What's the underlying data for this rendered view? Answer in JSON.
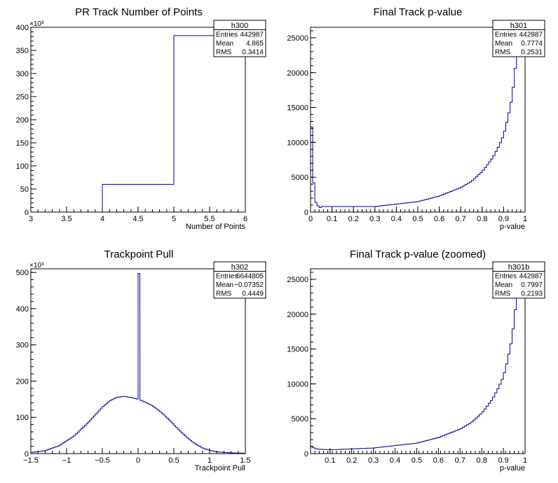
{
  "colors": {
    "hist_line": "#000099",
    "axis": "#000000",
    "background": "#ffffff"
  },
  "chart_data": [
    {
      "type": "histogram",
      "title": "PR Track Number of Points",
      "xlabel": "Number of Points",
      "ylabel": "",
      "xlim": [
        3,
        6
      ],
      "ylim": [
        0,
        400
      ],
      "y_exponent_label": "×10³",
      "xticks": [
        3,
        3.5,
        4,
        4.5,
        5,
        5.5,
        6
      ],
      "xtick_labels": [
        "3",
        "3.5",
        "4",
        "4.5",
        "5",
        "5.5",
        "6"
      ],
      "yticks": [
        0,
        50,
        100,
        150,
        200,
        250,
        300,
        350,
        400
      ],
      "ytick_labels": [
        "0",
        "50",
        "100",
        "150",
        "200",
        "250",
        "300",
        "350",
        "400"
      ],
      "bins": {
        "edges": [
          3,
          4,
          5,
          6
        ],
        "values": [
          0,
          60,
          382
        ]
      },
      "stats": {
        "name": "h300",
        "rows": [
          {
            "label": "Entries",
            "value": "442987"
          },
          {
            "label": "Mean",
            "value": "4.865"
          },
          {
            "label": "RMS",
            "value": "0.3414"
          }
        ]
      }
    },
    {
      "type": "histogram",
      "title": "Final Track p-value",
      "xlabel": "p-value",
      "ylabel": "",
      "xlim": [
        0,
        1
      ],
      "ylim": [
        0,
        26500
      ],
      "y_exponent_label": "",
      "xticks": [
        0,
        0.1,
        0.2,
        0.3,
        0.4,
        0.5,
        0.6,
        0.7,
        0.8,
        0.9,
        1
      ],
      "xtick_labels": [
        "0",
        "0.1",
        "0.2",
        "0.3",
        "0.4",
        "0.5",
        "0.6",
        "0.7",
        "0.8",
        "0.9",
        "1"
      ],
      "yticks": [
        0,
        5000,
        10000,
        15000,
        20000,
        25000
      ],
      "ytick_labels": [
        "0",
        "5000",
        "10000",
        "15000",
        "20000",
        "25000"
      ],
      "bins": {
        "x": [
          0,
          0.3,
          0.5,
          0.6,
          0.7,
          0.75,
          0.8,
          0.85,
          0.88,
          0.9,
          0.92,
          0.94,
          0.96,
          0.97,
          0.98,
          0.99,
          1.0
        ],
        "y": [
          800,
          800,
          1500,
          2300,
          3500,
          4400,
          5800,
          7800,
          9600,
          11000,
          13500,
          16500,
          22000,
          25000,
          26500,
          26500,
          26500
        ],
        "x_step": 0.01,
        "first_bins": [
          12200,
          4200,
          1400,
          900,
          650
        ]
      },
      "stats": {
        "name": "h301",
        "rows": [
          {
            "label": "Entries",
            "value": "442987"
          },
          {
            "label": "Mean",
            "value": "0.7774"
          },
          {
            "label": "RMS",
            "value": "0.2531"
          }
        ]
      }
    },
    {
      "type": "histogram",
      "title": "Trackpoint Pull",
      "xlabel": "Trackpoint Pull",
      "ylabel": "",
      "xlim": [
        -1.5,
        1.5
      ],
      "ylim": [
        0,
        510
      ],
      "y_exponent_label": "×10³",
      "xticks": [
        -1.5,
        -1,
        -0.5,
        0,
        0.5,
        1,
        1.5
      ],
      "xtick_labels": [
        "−1.5",
        "−1",
        "−0.5",
        "0",
        "0.5",
        "1",
        "1.5"
      ],
      "yticks": [
        0,
        100,
        200,
        300,
        400,
        500
      ],
      "ytick_labels": [
        "0",
        "100",
        "200",
        "300",
        "400",
        "500"
      ],
      "bins": {
        "x": [
          -1.5,
          -1.3,
          -1.1,
          -0.9,
          -0.7,
          -0.5,
          -0.4,
          -0.3,
          -0.2,
          -0.1,
          0.0,
          0.1,
          0.2,
          0.3,
          0.4,
          0.5,
          0.6,
          0.7,
          0.8,
          0.9,
          1.0,
          1.1,
          1.3,
          1.5
        ],
        "y": [
          3,
          8,
          22,
          48,
          85,
          128,
          145,
          155,
          158,
          155,
          150,
          142,
          132,
          118,
          100,
          80,
          60,
          42,
          27,
          16,
          9,
          5,
          2,
          1
        ],
        "x_step": 0.025,
        "spike": {
          "x": 0.0,
          "value": 497
        }
      },
      "stats": {
        "name": "h302",
        "rows": [
          {
            "label": "Entries",
            "value": "6644805"
          },
          {
            "label": "Mean",
            "value": "−0.07352"
          },
          {
            "label": "RMS",
            "value": "0.4449"
          }
        ]
      }
    },
    {
      "type": "histogram",
      "title": "Final Track p-value (zoomed)",
      "xlabel": "p-value",
      "ylabel": "",
      "xlim": [
        0.01,
        1
      ],
      "ylim": [
        0,
        26500
      ],
      "y_exponent_label": "",
      "xticks": [
        0.1,
        0.2,
        0.3,
        0.4,
        0.5,
        0.6,
        0.7,
        0.8,
        0.9,
        1
      ],
      "xtick_labels": [
        "0.1",
        "0.2",
        "0.3",
        "0.4",
        "0.5",
        "0.6",
        "0.7",
        "0.8",
        "0.9",
        "1"
      ],
      "yticks": [
        0,
        5000,
        10000,
        15000,
        20000,
        25000
      ],
      "ytick_labels": [
        "0",
        "5000",
        "10000",
        "15000",
        "20000",
        "25000"
      ],
      "bins": {
        "x": [
          0.01,
          0.02,
          0.04,
          0.1,
          0.3,
          0.5,
          0.6,
          0.7,
          0.75,
          0.8,
          0.85,
          0.88,
          0.9,
          0.92,
          0.94,
          0.96,
          0.97,
          0.98,
          0.99,
          1.0
        ],
        "y": [
          1200,
          900,
          650,
          550,
          800,
          1500,
          2300,
          3500,
          4400,
          5800,
          7800,
          9600,
          11000,
          13500,
          16500,
          22000,
          25000,
          26500,
          26500,
          26500
        ],
        "x_step": 0.01
      },
      "stats": {
        "name": "h301b",
        "rows": [
          {
            "label": "Entries",
            "value": "442987"
          },
          {
            "label": "Mean",
            "value": "0.7997"
          },
          {
            "label": "RMS",
            "value": "0.2193"
          }
        ]
      }
    }
  ]
}
